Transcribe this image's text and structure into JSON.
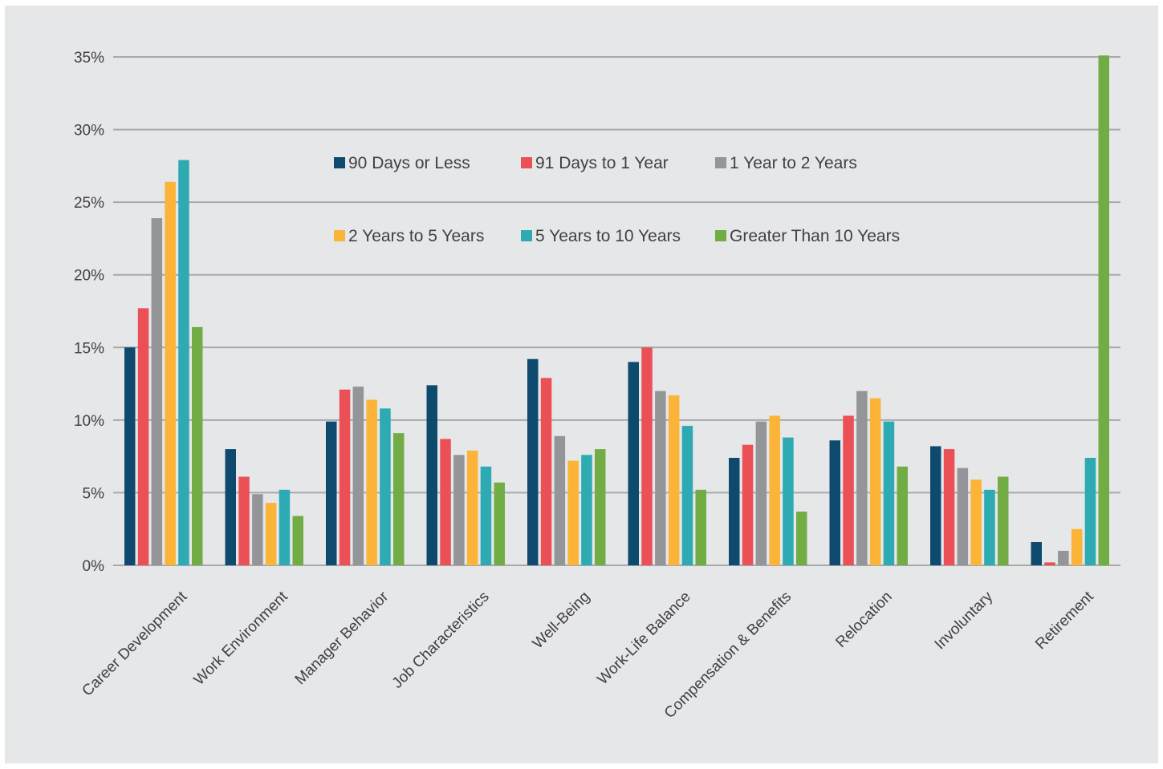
{
  "chart_data": {
    "type": "bar",
    "title": "",
    "xlabel": "",
    "ylabel": "",
    "ylim": [
      0,
      35
    ],
    "yticks": [
      "0%",
      "5%",
      "10%",
      "15%",
      "20%",
      "25%",
      "30%",
      "35%"
    ],
    "grid": true,
    "legend_position": "top-center",
    "categories": [
      "Career Development",
      "Work Environment",
      "Manager Behavior",
      "Job Characteristics",
      "Well-Being",
      "Work-Life Balance",
      "Compensation & Benefits",
      "Relocation",
      "Involuntary",
      "Retirement"
    ],
    "series": [
      {
        "name": "90 Days or Less",
        "color": "#0d4a6e",
        "values": [
          15.0,
          8.0,
          9.9,
          12.4,
          14.2,
          14.0,
          7.4,
          8.6,
          8.2,
          1.6
        ]
      },
      {
        "name": "91 Days to 1 Year",
        "color": "#ec5057",
        "values": [
          17.7,
          6.1,
          12.1,
          8.7,
          12.9,
          15.0,
          8.3,
          10.3,
          8.0,
          0.2
        ]
      },
      {
        "name": "1 Year to 2 Years",
        "color": "#939598",
        "values": [
          23.9,
          4.9,
          12.3,
          7.6,
          8.9,
          12.0,
          9.9,
          12.0,
          6.7,
          1.0
        ]
      },
      {
        "name": "2 Years to 5 Years",
        "color": "#fbb437",
        "values": [
          26.4,
          4.3,
          11.4,
          7.9,
          7.2,
          11.7,
          10.3,
          11.5,
          5.9,
          2.5
        ]
      },
      {
        "name": "5 Years to 10 Years",
        "color": "#2eaab3",
        "values": [
          27.9,
          5.2,
          10.8,
          6.8,
          7.6,
          9.6,
          8.8,
          9.9,
          5.2,
          7.4
        ]
      },
      {
        "name": "Greater Than 10 Years",
        "color": "#72ac45",
        "values": [
          16.4,
          3.4,
          9.1,
          5.7,
          8.0,
          5.2,
          3.7,
          6.8,
          6.1,
          35.1
        ]
      }
    ]
  }
}
